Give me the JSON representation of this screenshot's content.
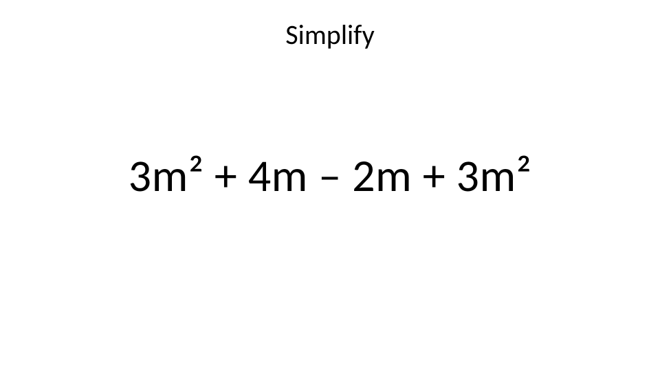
{
  "slide": {
    "title": "Simplify",
    "expression": "3m² + 4m – 2m + 3m²",
    "title_fontsize": 40,
    "expression_fontsize": 66,
    "title_color": "#000000",
    "expression_color": "#000000",
    "background_color": "#ffffff",
    "font_family": "Calibri"
  }
}
